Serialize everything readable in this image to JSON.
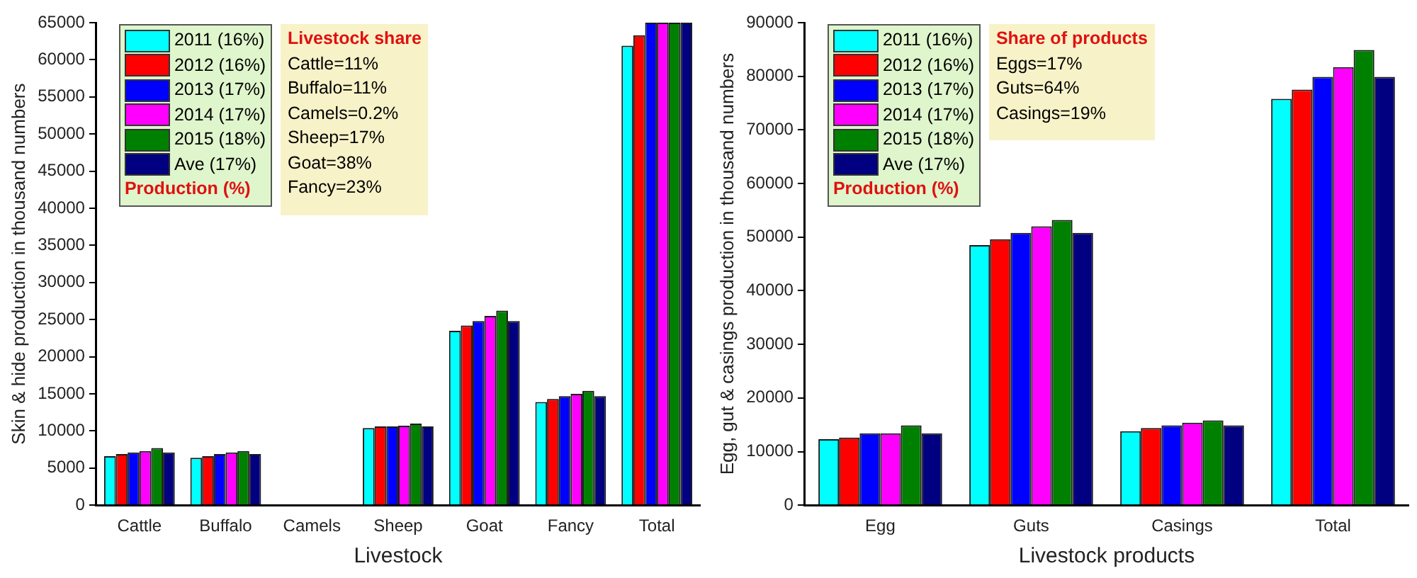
{
  "chart_data": [
    {
      "type": "bar",
      "xlabel": "Livestock",
      "ylabel": "Skin & hide production in thousand numbers",
      "categories": [
        "Cattle",
        "Buffalo",
        "Camels",
        "Sheep",
        "Goat",
        "Fancy",
        "Total"
      ],
      "series": [
        {
          "name": "2011 (16%)",
          "color": "#00ffff",
          "values": [
            6600,
            6400,
            null,
            10400,
            23500,
            13900,
            61900
          ]
        },
        {
          "name": "2012 (16%)",
          "color": "#ff0000",
          "values": [
            6900,
            6600,
            null,
            10600,
            24200,
            14300,
            63300
          ]
        },
        {
          "name": "2013 (17%)",
          "color": "#0000ff",
          "values": [
            7100,
            6900,
            null,
            10600,
            24800,
            14700,
            65000
          ]
        },
        {
          "name": "2014 (17%)",
          "color": "#ff00ff",
          "values": [
            7300,
            7100,
            null,
            10700,
            25500,
            15000,
            65000
          ]
        },
        {
          "name": "2015 (18%)",
          "color": "#008000",
          "values": [
            7700,
            7300,
            null,
            11000,
            26200,
            15400,
            65000
          ]
        },
        {
          "name": "Ave (17%)",
          "color": "#000080",
          "values": [
            7100,
            6900,
            null,
            10600,
            24800,
            14700,
            65000
          ]
        }
      ],
      "legend_title": "Production (%)",
      "legend": "top left",
      "annotations": [
        "Livestock share",
        "Cattle=11%",
        "Buffalo=11%",
        "Camels=0.2%",
        "Sheep=17%",
        "Goat=38%",
        "Fancy=23%"
      ],
      "ylim": [
        0,
        65000
      ],
      "yticks": [
        0,
        5000,
        10000,
        15000,
        20000,
        25000,
        30000,
        35000,
        40000,
        45000,
        50000,
        55000,
        60000,
        65000
      ],
      "grid": false
    },
    {
      "type": "bar",
      "xlabel": "Livestock products",
      "ylabel": "Egg, gut & casings production in thousand numbers",
      "categories": [
        "Egg",
        "Guts",
        "Casings",
        "Total"
      ],
      "series": [
        {
          "name": "2011 (16%)",
          "color": "#00ffff",
          "values": [
            12300,
            48500,
            13800,
            75800
          ]
        },
        {
          "name": "2012 (16%)",
          "color": "#ff0000",
          "values": [
            12600,
            49600,
            14400,
            77500
          ]
        },
        {
          "name": "2013 (17%)",
          "color": "#0000ff",
          "values": [
            13400,
            50800,
            14900,
            79900
          ]
        },
        {
          "name": "2014 (17%)",
          "color": "#ff00ff",
          "values": [
            13400,
            52000,
            15400,
            81700
          ]
        },
        {
          "name": "2015 (18%)",
          "color": "#008000",
          "values": [
            14900,
            53200,
            15800,
            84900
          ]
        },
        {
          "name": "Ave (17%)",
          "color": "#000080",
          "values": [
            13400,
            50800,
            14900,
            79900
          ]
        }
      ],
      "legend_title": "Production (%)",
      "legend": "top left",
      "annotations": [
        "Share of products",
        "Eggs=17%",
        "Guts=64%",
        "Casings=19%"
      ],
      "ylim": [
        0,
        90000
      ],
      "yticks": [
        0,
        10000,
        20000,
        30000,
        40000,
        50000,
        60000,
        70000,
        80000,
        90000
      ],
      "grid": false
    }
  ]
}
